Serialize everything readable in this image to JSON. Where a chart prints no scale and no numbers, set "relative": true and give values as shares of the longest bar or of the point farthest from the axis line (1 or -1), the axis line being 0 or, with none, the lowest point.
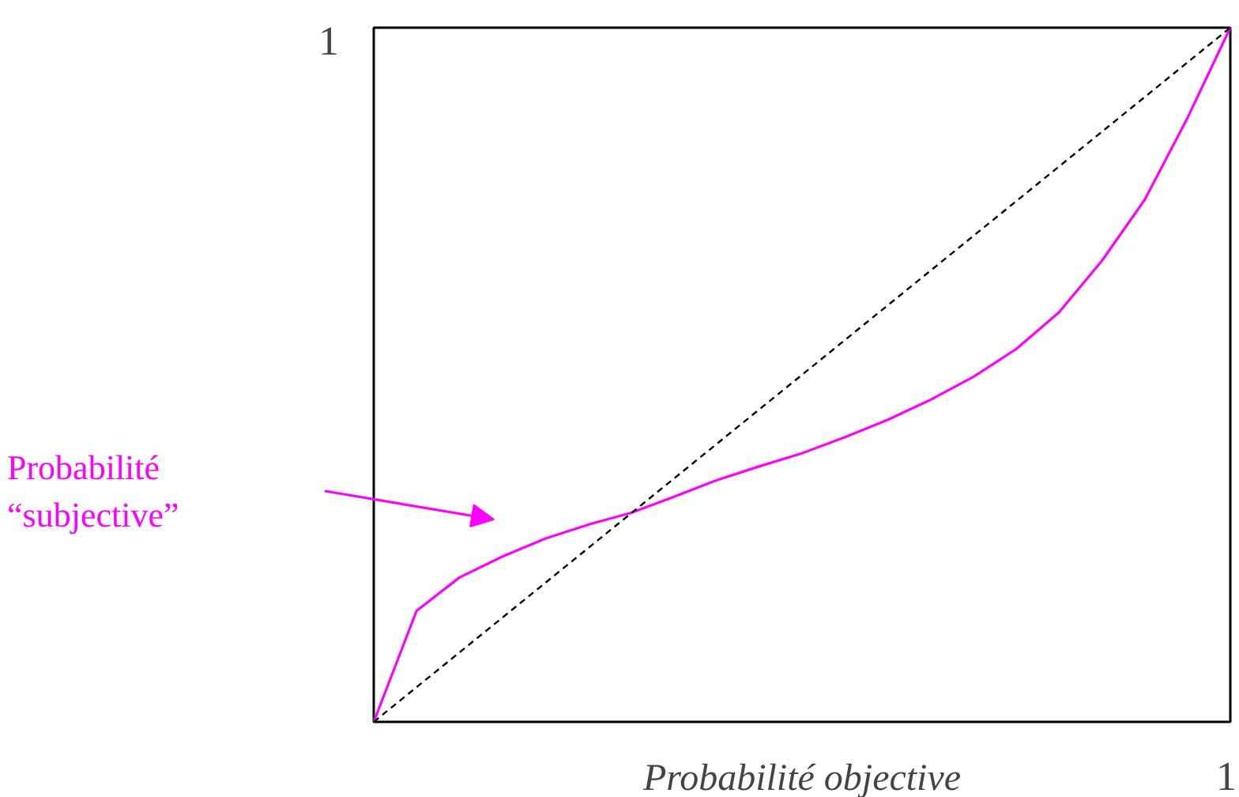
{
  "chart_data": {
    "type": "line",
    "relative": true,
    "xlabel": "Probabilité objective",
    "categories": [
      null,
      null,
      null,
      null,
      null,
      null,
      null,
      null,
      null,
      null,
      null,
      null,
      null,
      null,
      null,
      null,
      null,
      null,
      null,
      null,
      null
    ],
    "series": [
      {
        "name": "Probabilité\n“subjective”",
        "color": "#ff00ff",
        "line_style": "solid",
        "values": [
          0,
          0.16,
          0.208,
          0.238,
          0.264,
          0.284,
          0.301,
          0.324,
          0.348,
          0.368,
          0.387,
          0.41,
          0.435,
          0.464,
          0.497,
          0.537,
          0.59,
          0.664,
          0.752,
          0.87,
          1
        ]
      },
      {
        "color": "#000000",
        "line_style": "dashed",
        "values": [
          0,
          0.05,
          0.1,
          0.15,
          0.2,
          0.25,
          0.3,
          0.35,
          0.4,
          0.45,
          0.5,
          0.55,
          0.6,
          0.65,
          0.7,
          0.75,
          0.8,
          0.85,
          0.9,
          0.95,
          1
        ]
      }
    ],
    "annotations": [
      "1",
      "1"
    ],
    "grid": false,
    "marker": "none"
  }
}
